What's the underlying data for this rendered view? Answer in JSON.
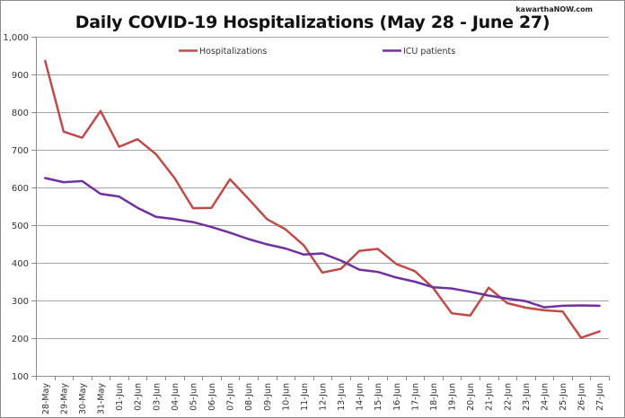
{
  "watermark": "kawarthaNOW.com",
  "chart_data": {
    "type": "line",
    "title": "Daily COVID-19 Hospitalizations (May 28 - June 27)",
    "xlabel": "",
    "ylabel": "",
    "ylim": [
      100,
      1000
    ],
    "yticks": [
      100,
      200,
      300,
      400,
      500,
      600,
      700,
      800,
      900,
      1000
    ],
    "ytick_labels": [
      "100",
      "200",
      "300",
      "400",
      "500",
      "600",
      "700",
      "800",
      "900",
      "1,000"
    ],
    "grid": true,
    "legend_position": "top",
    "categories": [
      "28-May",
      "29-May",
      "30-May",
      "31-May",
      "01-Jun",
      "02-Jun",
      "03-Jun",
      "04-Jun",
      "05-Jun",
      "06-Jun",
      "07-Jun",
      "08-Jun",
      "09-Jun",
      "10-Jun",
      "11-Jun",
      "12-Jun",
      "13-Jun",
      "14-Jun",
      "15-Jun",
      "16-Jun",
      "17-Jun",
      "18-Jun",
      "19-Jun",
      "20-Jun",
      "21-Jun",
      "22-Jun",
      "23-Jun",
      "24-Jun",
      "25-Jun",
      "26-Jun",
      "27-Jun"
    ],
    "series": [
      {
        "name": "Hospitalizations",
        "color": "#be4b48",
        "values": [
          936,
          748,
          732,
          803,
          708,
          728,
          688,
          625,
          545,
          546,
          622,
          570,
          516,
          489,
          446,
          374,
          384,
          432,
          437,
          397,
          378,
          333,
          266,
          260,
          334,
          293,
          281,
          274,
          271,
          201,
          218
        ]
      },
      {
        "name": "ICU patients",
        "color": "#7030a0",
        "values": [
          625,
          614,
          617,
          583,
          576,
          546,
          522,
          516,
          508,
          495,
          480,
          463,
          449,
          438,
          422,
          425,
          406,
          382,
          376,
          361,
          350,
          335,
          332,
          323,
          313,
          305,
          298,
          282,
          286,
          287,
          286
        ]
      }
    ]
  }
}
